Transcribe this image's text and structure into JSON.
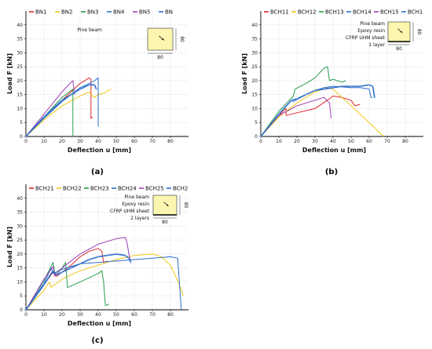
{
  "chart_data": [
    {
      "id": "a",
      "type": "line",
      "panel_label": "(a)",
      "xlabel": "Deflection u [mm]",
      "ylabel": "Load F [kN]",
      "xlim": [
        0,
        90
      ],
      "ylim": [
        0,
        45
      ],
      "xticks": [
        0,
        10,
        20,
        30,
        40,
        50,
        60,
        70,
        80
      ],
      "yticks": [
        0,
        5,
        10,
        15,
        20,
        25,
        30,
        35,
        40
      ],
      "legend_placement": "top",
      "inset": {
        "lines": [
          "Pine beam"
        ],
        "dim_bottom": "80",
        "dim_right": "80"
      },
      "series": [
        {
          "name": "BN1",
          "color": "#e0282e",
          "points": [
            [
              0,
              0
            ],
            [
              10,
              7
            ],
            [
              20,
              13
            ],
            [
              30,
              19
            ],
            [
              35,
              21
            ],
            [
              36,
              20.5
            ],
            [
              36,
              6.5
            ],
            [
              37,
              7
            ]
          ]
        },
        {
          "name": "BN2",
          "color": "#f2c618",
          "points": [
            [
              0,
              0
            ],
            [
              10,
              6
            ],
            [
              20,
              11
            ],
            [
              30,
              14.5
            ],
            [
              35,
              16
            ],
            [
              36,
              15
            ],
            [
              38,
              14
            ],
            [
              40,
              15
            ],
            [
              43,
              15.5
            ],
            [
              47,
              17
            ]
          ]
        },
        {
          "name": "BN3",
          "color": "#2a9d4f",
          "points": [
            [
              0,
              0
            ],
            [
              10,
              7
            ],
            [
              20,
              14
            ],
            [
              26,
              17
            ],
            [
              26,
              0
            ]
          ]
        },
        {
          "name": "BN4",
          "color": "#2e6fc9",
          "points": [
            [
              0,
              0
            ],
            [
              10,
              6.5
            ],
            [
              20,
              12.5
            ],
            [
              30,
              17.5
            ],
            [
              35,
              19
            ],
            [
              38,
              20
            ],
            [
              40,
              21
            ],
            [
              40,
              5
            ],
            [
              40,
              3.5
            ]
          ]
        },
        {
          "name": "BN5",
          "color": "#9b3bb8",
          "points": [
            [
              0,
              0
            ],
            [
              10,
              8
            ],
            [
              20,
              16
            ],
            [
              25,
              19.5
            ],
            [
              26,
              20
            ],
            [
              27,
              15
            ]
          ]
        },
        {
          "name": "BN",
          "color": "#2e6fc9",
          "points": [
            [
              0,
              0
            ],
            [
              10,
              7
            ],
            [
              20,
              13
            ],
            [
              30,
              17
            ],
            [
              35,
              18.5
            ],
            [
              38,
              18.5
            ],
            [
              39,
              17
            ]
          ]
        }
      ]
    },
    {
      "id": "b",
      "type": "line",
      "panel_label": "(b)",
      "xlabel": "Deflection u [mm]",
      "ylabel": "Load F [kN]",
      "xlim": [
        0,
        90
      ],
      "ylim": [
        0,
        45
      ],
      "xticks": [
        0,
        10,
        20,
        30,
        40,
        50,
        60,
        70,
        80
      ],
      "yticks": [
        0,
        5,
        10,
        15,
        20,
        25,
        30,
        35,
        40
      ],
      "legend_placement": "top",
      "inset": {
        "lines": [
          "Pine beam",
          "Epoxy resin",
          "CFRP UHM sheet",
          "1 layer"
        ],
        "dim_bottom": "80",
        "dim_right": "80"
      },
      "series": [
        {
          "name": "BCH11",
          "color": "#e0282e",
          "points": [
            [
              0,
              0
            ],
            [
              10,
              7.5
            ],
            [
              14,
              10
            ],
            [
              14,
              7.5
            ],
            [
              20,
              8.5
            ],
            [
              30,
              10
            ],
            [
              38,
              13.5
            ],
            [
              40,
              14.5
            ],
            [
              45,
              14
            ],
            [
              50,
              13
            ],
            [
              52,
              11
            ],
            [
              55,
              11.5
            ]
          ]
        },
        {
          "name": "BCH12",
          "color": "#f2c618",
          "points": [
            [
              0,
              0
            ],
            [
              10,
              7
            ],
            [
              20,
              12
            ],
            [
              30,
              16
            ],
            [
              37,
              17.5
            ],
            [
              40,
              17
            ],
            [
              50,
              11
            ],
            [
              60,
              5
            ],
            [
              68,
              0
            ]
          ]
        },
        {
          "name": "BCH13",
          "color": "#2a9d4f",
          "points": [
            [
              0,
              0
            ],
            [
              10,
              9
            ],
            [
              18,
              14.5
            ],
            [
              19,
              17
            ],
            [
              25,
              19
            ],
            [
              30,
              21
            ],
            [
              35,
              24.5
            ],
            [
              37,
              25
            ],
            [
              38,
              20
            ],
            [
              40,
              20.5
            ],
            [
              45,
              19.5
            ],
            [
              47,
              20
            ]
          ]
        },
        {
          "name": "BCH14",
          "color": "#2e6fc9",
          "points": [
            [
              0,
              0
            ],
            [
              10,
              8
            ],
            [
              17,
              13
            ],
            [
              18,
              12.5
            ],
            [
              25,
              15
            ],
            [
              30,
              16.5
            ],
            [
              35,
              17.5
            ],
            [
              40,
              18
            ],
            [
              50,
              17.5
            ],
            [
              55,
              17.5
            ],
            [
              60,
              17
            ],
            [
              61,
              14
            ],
            [
              62,
              14
            ]
          ]
        },
        {
          "name": "BCH15",
          "color": "#9b3bb8",
          "points": [
            [
              0,
              0
            ],
            [
              10,
              7.5
            ],
            [
              20,
              11
            ],
            [
              30,
              13
            ],
            [
              35,
              14
            ],
            [
              38,
              12
            ],
            [
              39,
              6.5
            ]
          ]
        },
        {
          "name": "BCH1",
          "color": "#2e6fc9",
          "points": [
            [
              0,
              0
            ],
            [
              10,
              8
            ],
            [
              17,
              13
            ],
            [
              20,
              13.5
            ],
            [
              25,
              15
            ],
            [
              30,
              16.5
            ],
            [
              35,
              17
            ],
            [
              40,
              17.5
            ],
            [
              45,
              18
            ],
            [
              50,
              18
            ],
            [
              55,
              18
            ],
            [
              60,
              18.5
            ],
            [
              62,
              18
            ],
            [
              63,
              14
            ]
          ]
        }
      ]
    },
    {
      "id": "c",
      "type": "line",
      "panel_label": "(c)",
      "xlabel": "Deflection u [mm]",
      "ylabel": "Load F [kN]",
      "xlim": [
        0,
        90
      ],
      "ylim": [
        0,
        45
      ],
      "xticks": [
        0,
        10,
        20,
        30,
        40,
        50,
        60,
        70,
        80
      ],
      "yticks": [
        0,
        5,
        10,
        15,
        20,
        25,
        30,
        35,
        40
      ],
      "legend_placement": "top",
      "inset": {
        "lines": [
          "Pine beam",
          "Epoxy resin",
          "CFRP UHM sheet",
          "2 layers"
        ],
        "dim_bottom": "80",
        "dim_right": "80"
      },
      "series": [
        {
          "name": "BCH21",
          "color": "#e0282e",
          "points": [
            [
              0,
              0
            ],
            [
              10,
              9
            ],
            [
              15,
              13.5
            ],
            [
              17,
              12
            ],
            [
              25,
              16
            ],
            [
              30,
              19
            ],
            [
              35,
              21
            ],
            [
              40,
              22
            ],
            [
              42,
              21
            ],
            [
              43,
              17
            ],
            [
              45,
              17.5
            ]
          ]
        },
        {
          "name": "BCH22",
          "color": "#f2c618",
          "points": [
            [
              0,
              0
            ],
            [
              10,
              7
            ],
            [
              13,
              10
            ],
            [
              14,
              8
            ],
            [
              20,
              11
            ],
            [
              30,
              14
            ],
            [
              40,
              16
            ],
            [
              50,
              18
            ],
            [
              60,
              19.5
            ],
            [
              70,
              20
            ],
            [
              75,
              19
            ],
            [
              80,
              16
            ],
            [
              85,
              9
            ],
            [
              87,
              5
            ]
          ]
        },
        {
          "name": "BCH23",
          "color": "#2a9d4f",
          "points": [
            [
              0,
              0
            ],
            [
              10,
              10.5
            ],
            [
              15,
              17
            ],
            [
              16,
              13
            ],
            [
              20,
              15
            ],
            [
              22,
              17
            ],
            [
              23,
              8
            ],
            [
              30,
              10
            ],
            [
              40,
              13
            ],
            [
              42,
              14
            ],
            [
              43,
              10
            ],
            [
              44,
              1.5
            ],
            [
              46,
              2
            ]
          ]
        },
        {
          "name": "BCH24",
          "color": "#2e6fc9",
          "points": [
            [
              0,
              0
            ],
            [
              10,
              9.5
            ],
            [
              14,
              15
            ],
            [
              15,
              13
            ],
            [
              20,
              14.5
            ],
            [
              25,
              15.5
            ],
            [
              30,
              16.5
            ],
            [
              40,
              17
            ],
            [
              50,
              17.5
            ],
            [
              60,
              18
            ],
            [
              70,
              18.5
            ],
            [
              80,
              19
            ],
            [
              84,
              18.5
            ],
            [
              86,
              0
            ]
          ]
        },
        {
          "name": "BCH25",
          "color": "#9b3bb8",
          "points": [
            [
              0,
              0
            ],
            [
              10,
              11
            ],
            [
              15,
              15.5
            ],
            [
              16,
              12
            ],
            [
              20,
              15
            ],
            [
              30,
              20
            ],
            [
              40,
              23.5
            ],
            [
              50,
              25.5
            ],
            [
              55,
              26
            ],
            [
              56,
              24
            ],
            [
              57,
              20
            ],
            [
              58,
              17
            ]
          ]
        },
        {
          "name": "BCH2",
          "color": "#2e6fc9",
          "points": [
            [
              0,
              0
            ],
            [
              10,
              9
            ],
            [
              15,
              14
            ],
            [
              17,
              12.5
            ],
            [
              20,
              13.5
            ],
            [
              25,
              15
            ],
            [
              30,
              16.5
            ],
            [
              35,
              18
            ],
            [
              40,
              19
            ],
            [
              45,
              19.5
            ],
            [
              50,
              20
            ],
            [
              55,
              19.5
            ],
            [
              57,
              18.5
            ],
            [
              58,
              17
            ]
          ]
        }
      ]
    }
  ]
}
